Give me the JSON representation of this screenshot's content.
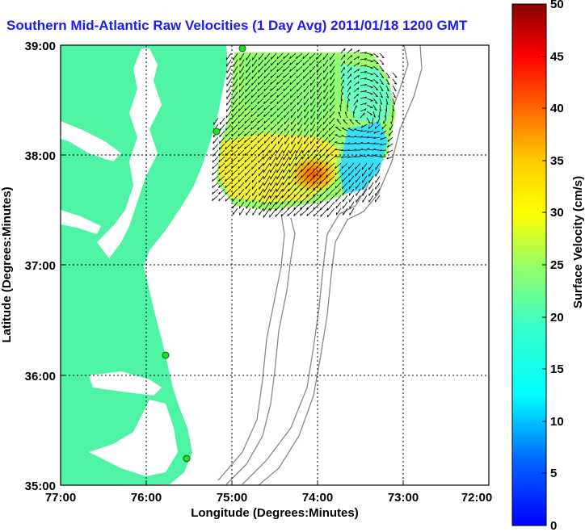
{
  "title": "Southern Mid-Atlantic Raw Velocities (1 Day Avg) 2011/01/18 1200 GMT",
  "xaxis": {
    "label": "Longitude (Degrees:Minutes)",
    "ticks": [
      "77:00",
      "76:00",
      "75:00",
      "74:00",
      "73:00",
      "72:00"
    ]
  },
  "yaxis": {
    "label": "Latitude (Degrees:Minutes)",
    "ticks": [
      "39:00",
      "38:00",
      "37:00",
      "36:00",
      "35:00"
    ]
  },
  "colorbar": {
    "label": "Surface Velocity (cm/s)",
    "ticks": [
      "50",
      "45",
      "40",
      "35",
      "30",
      "25",
      "20",
      "15",
      "10",
      "5",
      "0"
    ],
    "range": [
      0,
      50
    ],
    "colormap": "jet"
  },
  "colors": {
    "land": "#4ef3a4",
    "ocean": "#ffffff",
    "title": "#1a1aff",
    "bathymetry": "#888888",
    "grid": "#000000",
    "station": "#22dd22"
  },
  "map": {
    "lon_range": [
      -77,
      -72
    ],
    "lat_range": [
      35,
      39
    ],
    "grid": "dotted",
    "velocity_field": "arrows over colored speed patch, strongest flow southwest near 38N 74W"
  }
}
